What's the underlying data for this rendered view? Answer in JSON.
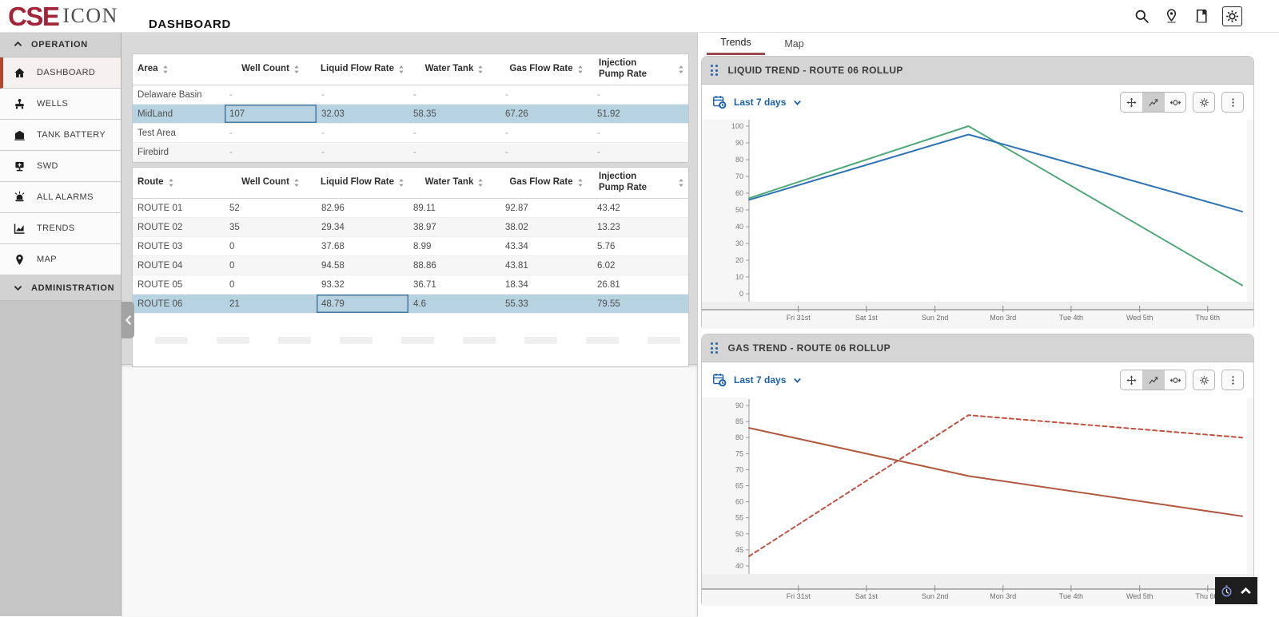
{
  "topbar": {
    "logo_primary": "CSE",
    "logo_secondary": "ICON",
    "page_title": "DASHBOARD",
    "icons": [
      "search-icon",
      "location-icon",
      "book-icon",
      "gear-icon"
    ]
  },
  "sidebar": {
    "sections": [
      {
        "label": "OPERATION",
        "state": "expanded",
        "items": [
          {
            "label": "DASHBOARD",
            "icon": "home-icon",
            "active": true
          },
          {
            "label": "WELLS",
            "icon": "wellhead-icon",
            "active": false
          },
          {
            "label": "TANK BATTERY",
            "icon": "tank-icon",
            "active": false
          },
          {
            "label": "SWD",
            "icon": "pump-icon",
            "active": false
          },
          {
            "label": "ALL ALARMS",
            "icon": "alarm-icon",
            "active": false
          },
          {
            "label": "TRENDS",
            "icon": "trend-icon",
            "active": false
          },
          {
            "label": "MAP",
            "icon": "map-pin-icon",
            "active": false
          }
        ]
      },
      {
        "label": "ADMINISTRATION",
        "state": "collapsed",
        "items": []
      }
    ]
  },
  "area_table": {
    "columns": [
      "Area",
      "Well Count",
      "Liquid Flow Rate",
      "Water Tank",
      "Gas Flow Rate",
      "Injection Pump Rate"
    ],
    "rows": [
      [
        "Delaware Basin",
        "-",
        "-",
        "-",
        "-",
        "-"
      ],
      [
        "MidLand",
        "107",
        "32.03",
        "58.35",
        "67.26",
        "51.92"
      ],
      [
        "Test Area",
        "-",
        "-",
        "-",
        "-",
        "-"
      ],
      [
        "Firebird",
        "-",
        "-",
        "-",
        "-",
        "-"
      ]
    ],
    "selected_row_index": 1,
    "focused_cell": {
      "row": 1,
      "col": 1
    }
  },
  "route_table": {
    "columns": [
      "Route",
      "Well Count",
      "Liquid Flow Rate",
      "Water Tank",
      "Gas Flow Rate",
      "Injection Pump Rate"
    ],
    "rows": [
      [
        "ROUTE 01",
        "52",
        "82.96",
        "89.11",
        "92.87",
        "43.42"
      ],
      [
        "ROUTE 02",
        "35",
        "29.34",
        "38.97",
        "38.02",
        "13.23"
      ],
      [
        "ROUTE 03",
        "0",
        "37.68",
        "8.99",
        "43.34",
        "5.76"
      ],
      [
        "ROUTE 04",
        "0",
        "94.58",
        "88.86",
        "43.81",
        "6.02"
      ],
      [
        "ROUTE 05",
        "0",
        "93.32",
        "36.71",
        "18.34",
        "26.81"
      ],
      [
        "ROUTE 06",
        "21",
        "48.79",
        "4.6",
        "55.33",
        "79.55"
      ]
    ],
    "selected_row_index": 5,
    "focused_cell": {
      "row": 5,
      "col": 2
    }
  },
  "right_panel": {
    "tabs": [
      {
        "label": "Trends",
        "active": true
      },
      {
        "label": "Map",
        "active": false
      }
    ],
    "cards": [
      {
        "title": "LIQUID TREND - ROUTE 06 ROLLUP",
        "time_range": "Last 7 days"
      },
      {
        "title": "GAS TREND - ROUTE 06 ROLLUP",
        "time_range": "Last 7 days"
      }
    ]
  },
  "chart_data": [
    {
      "type": "line",
      "title": "LIQUID TREND - ROUTE 06 ROLLUP",
      "xlabel": "",
      "ylabel": "",
      "ylim": [
        0,
        100
      ],
      "ytick_step": 10,
      "grid": false,
      "legend": "none",
      "x_tick_labels": [
        "Fri 31st",
        "Sat 1st",
        "Sun 2nd",
        "Mon 3rd",
        "Tue 4th",
        "Wed 5th",
        "Thu 6th"
      ],
      "x_tick_positions": [
        0.1,
        0.238,
        0.377,
        0.515,
        0.653,
        0.792,
        0.93
      ],
      "series": [
        {
          "name": "liquid-flow-green",
          "color": "#4ea878",
          "style": "solid",
          "points": [
            {
              "x": 0,
              "y": 57
            },
            {
              "x": 0.445,
              "y": 100
            },
            {
              "x": 1,
              "y": 5
            }
          ]
        },
        {
          "name": "liquid-flow-blue",
          "color": "#2e74b5",
          "style": "solid",
          "points": [
            {
              "x": 0,
              "y": 56
            },
            {
              "x": 0.445,
              "y": 95
            },
            {
              "x": 1,
              "y": 49
            }
          ]
        }
      ]
    },
    {
      "type": "line",
      "title": "GAS TREND - ROUTE 06 ROLLUP",
      "xlabel": "",
      "ylabel": "",
      "ylim": [
        40,
        90
      ],
      "ytick_step": 5,
      "grid": false,
      "legend": "none",
      "x_tick_labels": [
        "Fri 31st",
        "Sat 1st",
        "Sun 2nd",
        "Mon 3rd",
        "Tue 4th",
        "Wed 5th",
        "Thu 6th"
      ],
      "x_tick_positions": [
        0.1,
        0.238,
        0.377,
        0.515,
        0.653,
        0.792,
        0.93
      ],
      "series": [
        {
          "name": "gas-flow-solid",
          "color": "#b0593f",
          "style": "solid",
          "points": [
            {
              "x": 0,
              "y": 83
            },
            {
              "x": 0.445,
              "y": 68
            },
            {
              "x": 1,
              "y": 55.5
            }
          ]
        },
        {
          "name": "gas-flow-dashed",
          "color": "#c2503f",
          "style": "dashed",
          "points": [
            {
              "x": 0,
              "y": 43
            },
            {
              "x": 0.445,
              "y": 87
            },
            {
              "x": 1,
              "y": 80
            }
          ]
        }
      ]
    }
  ],
  "colors": {
    "brand_red": "#a32638",
    "accent_blue": "#1b5fae",
    "selected_row": "#b7d3e2",
    "tab_underline": "#9a4a4f",
    "active_item_border": "#b2492f",
    "card_header": "#d5d5d5"
  }
}
